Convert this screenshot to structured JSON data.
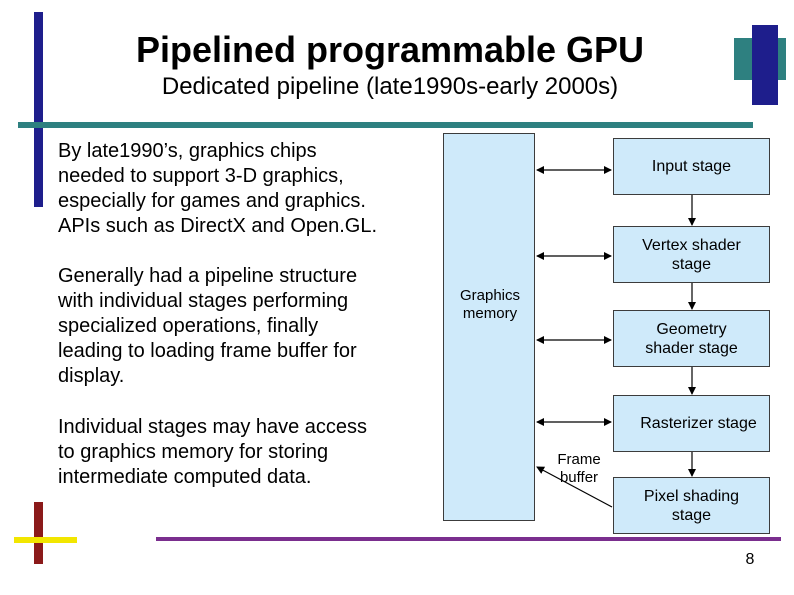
{
  "slide": {
    "title": "Pipelined programmable GPU",
    "subtitle": "Dedicated pipeline (late1990s-early 2000s)",
    "paragraphs": [
      "By late1990’s, graphics chips\nneeded to support 3-D graphics,\nespecially  for games and graphics.\nAPIs such as DirectX and Open.GL.",
      "Generally had a pipeline structure\nwith individual stages performing\nspecialized operations, finally\nleading to loading frame buffer for\ndisplay.",
      "Individual stages may have access\nto graphics memory for storing\nintermediate computed data."
    ],
    "diagram": {
      "memory_label": "Graphics\nmemory",
      "stages": [
        "Input stage",
        "Vertex shader\nstage",
        "Geometry\nshader stage",
        "Rasterizer stage",
        "Pixel shading\nstage"
      ],
      "frame_buffer_label": "Frame\nbuffer"
    },
    "page_number": "8",
    "colors": {
      "navy": "#1e1e8c",
      "teal": "#2e8080",
      "dark_red": "#8b1a1a",
      "yellow": "#f2e600",
      "purple": "#7a2e8e",
      "box_fill": "#cfeafa"
    }
  }
}
